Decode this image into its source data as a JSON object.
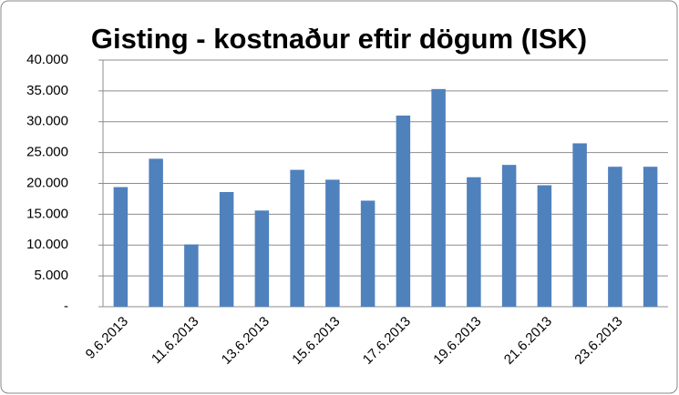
{
  "chart_data": {
    "type": "bar",
    "title": "Gisting - kostnaður eftir dögum (ISK)",
    "categories": [
      "9.6.2013",
      null,
      "11.6.2013",
      null,
      "13.6.2013",
      null,
      "15.6.2013",
      null,
      "17.6.2013",
      null,
      "19.6.2013",
      null,
      "21.6.2013",
      null,
      "23.6.2013",
      null
    ],
    "values": [
      19400,
      24000,
      10100,
      18600,
      15600,
      22200,
      20600,
      17200,
      31000,
      35300,
      21000,
      23000,
      19700,
      26500,
      22700,
      22700
    ],
    "color": "#4f81bd",
    "ylim": [
      0,
      40000
    ],
    "yticks": [
      {
        "value": 0,
        "label": "-"
      },
      {
        "value": 5000,
        "label": "5.000"
      },
      {
        "value": 10000,
        "label": "10.000"
      },
      {
        "value": 15000,
        "label": "15.000"
      },
      {
        "value": 20000,
        "label": "20.000"
      },
      {
        "value": 25000,
        "label": "25.000"
      },
      {
        "value": 30000,
        "label": "30.000"
      },
      {
        "value": 35000,
        "label": "35.000"
      },
      {
        "value": 40000,
        "label": "40.000"
      }
    ],
    "grid": true
  }
}
